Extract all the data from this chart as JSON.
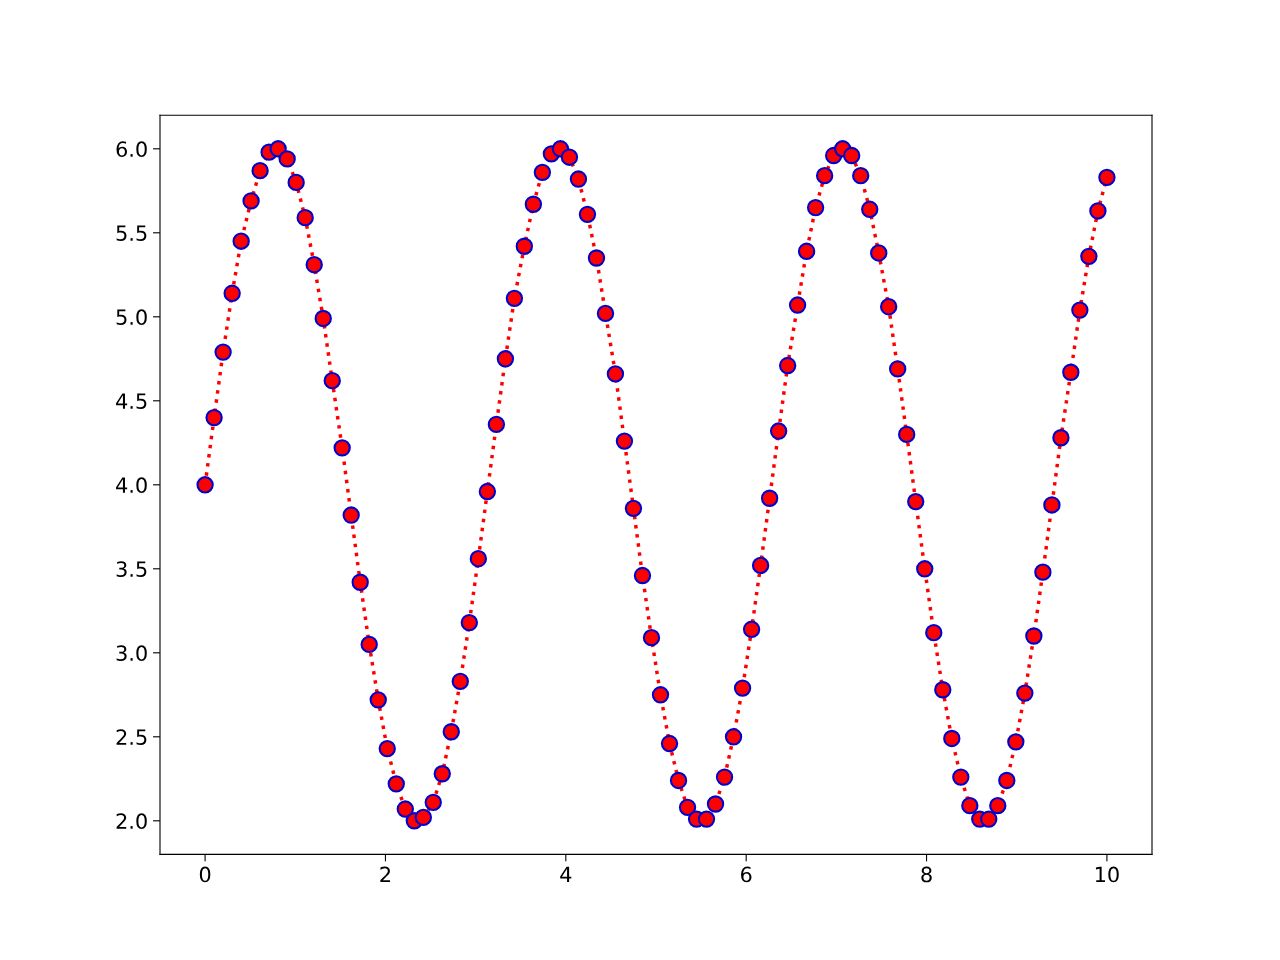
{
  "chart_data": {
    "type": "line",
    "marker": "circle",
    "line_style": "dotted",
    "grid": false,
    "x": [
      0.0,
      0.1,
      0.2,
      0.3,
      0.4,
      0.51,
      0.61,
      0.71,
      0.81,
      0.91,
      1.01,
      1.11,
      1.21,
      1.31,
      1.41,
      1.52,
      1.62,
      1.72,
      1.82,
      1.92,
      2.02,
      2.12,
      2.22,
      2.32,
      2.42,
      2.53,
      2.63,
      2.73,
      2.83,
      2.93,
      3.03,
      3.13,
      3.23,
      3.33,
      3.43,
      3.54,
      3.64,
      3.74,
      3.84,
      3.94,
      4.04,
      4.14,
      4.24,
      4.34,
      4.44,
      4.55,
      4.65,
      4.75,
      4.85,
      4.95,
      5.05,
      5.15,
      5.25,
      5.35,
      5.45,
      5.56,
      5.66,
      5.76,
      5.86,
      5.96,
      6.06,
      6.16,
      6.26,
      6.36,
      6.46,
      6.57,
      6.67,
      6.77,
      6.87,
      6.97,
      7.07,
      7.17,
      7.27,
      7.37,
      7.47,
      7.58,
      7.68,
      7.78,
      7.88,
      7.98,
      8.08,
      8.18,
      8.28,
      8.38,
      8.48,
      8.59,
      8.69,
      8.79,
      8.89,
      8.99,
      9.09,
      9.19,
      9.29,
      9.39,
      9.49,
      9.6,
      9.7,
      9.8,
      9.9,
      10.0
    ],
    "series": [
      {
        "color": "#ff0000",
        "values": [
          4.0,
          4.4,
          4.79,
          5.14,
          5.45,
          5.69,
          5.87,
          5.98,
          6.0,
          5.94,
          5.8,
          5.59,
          5.31,
          4.99,
          4.62,
          4.22,
          3.82,
          3.42,
          3.05,
          2.72,
          2.43,
          2.22,
          2.07,
          2.0,
          2.02,
          2.11,
          2.28,
          2.53,
          2.83,
          3.18,
          3.56,
          3.96,
          4.36,
          4.75,
          5.11,
          5.42,
          5.67,
          5.86,
          5.97,
          6.0,
          5.95,
          5.82,
          5.61,
          5.35,
          5.02,
          4.66,
          4.26,
          3.86,
          3.46,
          3.09,
          2.75,
          2.46,
          2.24,
          2.08,
          2.01,
          2.01,
          2.1,
          2.26,
          2.5,
          2.79,
          3.14,
          3.52,
          3.92,
          4.32,
          4.71,
          5.07,
          5.39,
          5.65,
          5.84,
          5.96,
          6.0,
          5.96,
          5.84,
          5.64,
          5.38,
          5.06,
          4.69,
          4.3,
          3.9,
          3.5,
          3.12,
          2.78,
          2.49,
          2.26,
          2.09,
          2.01,
          2.01,
          2.09,
          2.24,
          2.47,
          2.76,
          3.1,
          3.48,
          3.88,
          4.28,
          4.67,
          5.04,
          5.36,
          5.63,
          5.83
        ]
      }
    ],
    "xlim": [
      -0.5,
      10.5
    ],
    "ylim": [
      1.8,
      6.2
    ],
    "xticks": [
      0,
      2,
      4,
      6,
      8,
      10
    ],
    "yticks": [
      {
        "value": 2.0,
        "label": "2.0"
      },
      {
        "value": 2.5,
        "label": "2.5"
      },
      {
        "value": 3.0,
        "label": "3.0"
      },
      {
        "value": 3.5,
        "label": "3.5"
      },
      {
        "value": 4.0,
        "label": "4.0"
      },
      {
        "value": 4.5,
        "label": "4.5"
      },
      {
        "value": 5.0,
        "label": "5.0"
      },
      {
        "value": 5.5,
        "label": "5.5"
      },
      {
        "value": 6.0,
        "label": "6.0"
      }
    ]
  }
}
